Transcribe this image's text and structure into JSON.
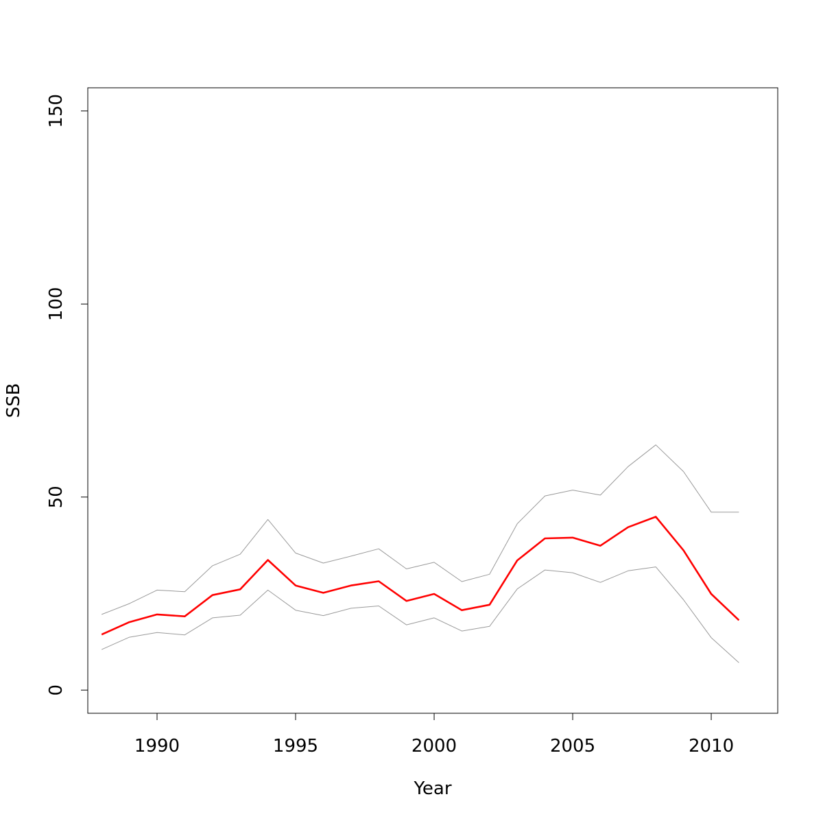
{
  "chart_data": {
    "type": "line",
    "title": "",
    "xlabel": "Year",
    "ylabel": "SSB",
    "xlim": [
      1987.5,
      2012.4
    ],
    "ylim": [
      -6,
      156
    ],
    "x_ticks": [
      1990,
      1995,
      2000,
      2005,
      2010
    ],
    "x_tick_labels": [
      "1990",
      "1995",
      "2000",
      "2005",
      "2010"
    ],
    "y_ticks": [
      0,
      50,
      100,
      150
    ],
    "y_tick_labels": [
      "0",
      "50",
      "100",
      "150"
    ],
    "grid": false,
    "legend": "none",
    "x": [
      1988,
      1989,
      1990,
      1991,
      1992,
      1993,
      1994,
      1995,
      1996,
      1997,
      1998,
      1999,
      2000,
      2001,
      2002,
      2003,
      2004,
      2005,
      2006,
      2007,
      2008,
      2009,
      2010,
      2011
    ],
    "series": [
      {
        "role": "estimate",
        "color": "#ff0000",
        "values": [
          14.4,
          17.6,
          19.6,
          19.1,
          24.6,
          26.1,
          33.7,
          27.1,
          25.2,
          27.1,
          28.2,
          23.1,
          24.9,
          20.7,
          22.1,
          33.6,
          39.3,
          39.5,
          37.4,
          42.2,
          44.9,
          36.2,
          24.9,
          18.1
        ]
      },
      {
        "role": "upper-bound",
        "color": "#999999",
        "values": [
          19.6,
          22.4,
          25.9,
          25.5,
          32.2,
          35.2,
          44.2,
          35.5,
          32.9,
          34.7,
          36.6,
          31.4,
          33.1,
          28.1,
          30.0,
          43.1,
          50.3,
          51.8,
          50.5,
          57.9,
          63.5,
          56.6,
          46.1,
          46.1
        ]
      },
      {
        "role": "lower-bound",
        "color": "#999999",
        "values": [
          10.5,
          13.7,
          14.9,
          14.3,
          18.7,
          19.4,
          25.9,
          20.7,
          19.3,
          21.2,
          21.8,
          16.9,
          18.7,
          15.3,
          16.5,
          26.2,
          31.1,
          30.4,
          27.9,
          30.9,
          31.9,
          23.4,
          13.6,
          7.1
        ]
      }
    ]
  }
}
